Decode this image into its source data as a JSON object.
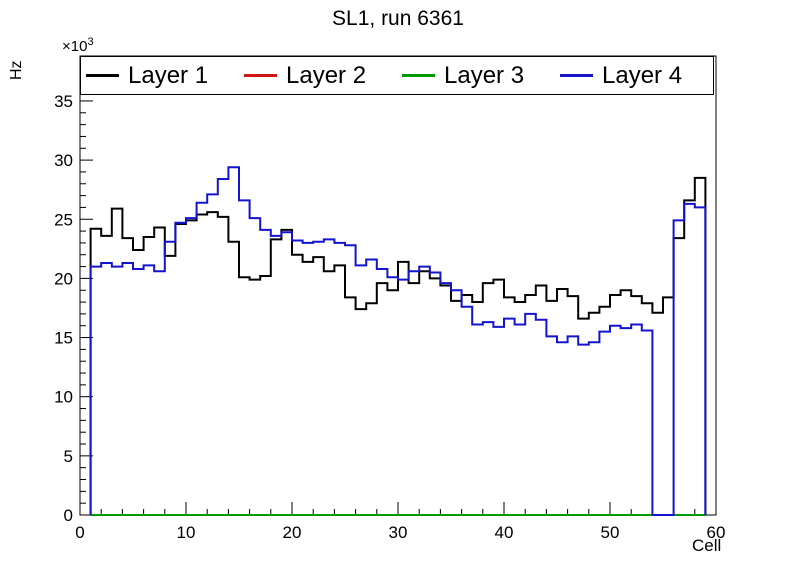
{
  "title": "SL1, run 6361",
  "axes": {
    "x_label": "Cell",
    "y_label": "Hz",
    "y_power_base": "×10",
    "y_power_exp": "3",
    "x_ticks": [
      0,
      10,
      20,
      30,
      40,
      50,
      60
    ],
    "y_ticks": [
      0,
      5,
      10,
      15,
      20,
      25,
      30,
      35
    ],
    "x_minor_step": 2,
    "y_minor_step": 1
  },
  "chart_data": {
    "type": "line",
    "style": "step-histogram",
    "title": "SL1, run 6361",
    "xlabel": "Cell",
    "ylabel": "Hz",
    "values_unit": "10^3 Hz",
    "xlim": [
      0,
      60
    ],
    "ylim": [
      0,
      38.8
    ],
    "grid": false,
    "legend_position": "top",
    "bin_width": 1,
    "x_bins_start": 1,
    "series": [
      {
        "name": "Layer 1",
        "color": "#000000",
        "values": [
          24.2,
          23.6,
          25.9,
          23.4,
          22.4,
          23.5,
          24.3,
          21.9,
          24.6,
          24.9,
          25.4,
          25.6,
          25.2,
          23.1,
          20.1,
          19.9,
          20.2,
          23.3,
          24.1,
          22.0,
          21.4,
          21.8,
          20.6,
          21.1,
          18.4,
          17.4,
          17.9,
          19.6,
          19.0,
          21.4,
          19.6,
          20.6,
          20.0,
          19.4,
          18.1,
          18.6,
          18.0,
          19.6,
          19.9,
          18.4,
          18.0,
          18.6,
          19.4,
          18.1,
          19.1,
          18.5,
          16.6,
          17.1,
          17.6,
          18.6,
          19.0,
          18.5,
          17.9,
          17.1,
          18.4,
          23.4,
          26.6,
          28.5
        ]
      },
      {
        "name": "Layer 2",
        "color": "#d21616",
        "values": [
          0,
          0,
          0,
          0,
          0,
          0,
          0,
          0,
          0,
          0,
          0,
          0,
          0,
          0,
          0,
          0,
          0,
          0,
          0,
          0,
          0,
          0,
          0,
          0,
          0,
          0,
          0,
          0,
          0,
          0,
          0,
          0,
          0,
          0,
          0,
          0,
          0,
          0,
          0,
          0,
          0,
          0,
          0,
          0,
          0,
          0,
          0,
          0,
          0,
          0,
          0,
          0,
          0,
          0,
          0,
          0,
          0,
          0
        ]
      },
      {
        "name": "Layer 3",
        "color": "#009900",
        "values": [
          0,
          0,
          0,
          0,
          0,
          0,
          0,
          0,
          0,
          0,
          0,
          0,
          0,
          0,
          0,
          0,
          0,
          0,
          0,
          0,
          0,
          0,
          0,
          0,
          0,
          0,
          0,
          0,
          0,
          0,
          0,
          0,
          0,
          0,
          0,
          0,
          0,
          0,
          0,
          0,
          0,
          0,
          0,
          0,
          0,
          0,
          0,
          0,
          0,
          0,
          0,
          0,
          0,
          0,
          0,
          0,
          0,
          0
        ]
      },
      {
        "name": "Layer 4",
        "color": "#1414cc",
        "values": [
          21.0,
          21.3,
          21.0,
          21.3,
          20.8,
          21.1,
          20.6,
          23.1,
          24.7,
          25.1,
          26.4,
          27.1,
          28.4,
          29.4,
          26.6,
          25.1,
          24.1,
          23.6,
          23.9,
          23.2,
          23.0,
          23.1,
          23.3,
          23.0,
          22.8,
          21.1,
          21.6,
          20.8,
          20.1,
          19.9,
          20.6,
          21.0,
          20.5,
          19.6,
          19.0,
          17.6,
          16.1,
          16.3,
          15.9,
          16.6,
          16.1,
          17.0,
          16.5,
          15.1,
          14.6,
          15.1,
          14.4,
          14.6,
          15.5,
          16.0,
          15.8,
          16.1,
          15.6,
          0,
          0,
          24.9,
          26.3,
          26.0
        ]
      }
    ]
  }
}
